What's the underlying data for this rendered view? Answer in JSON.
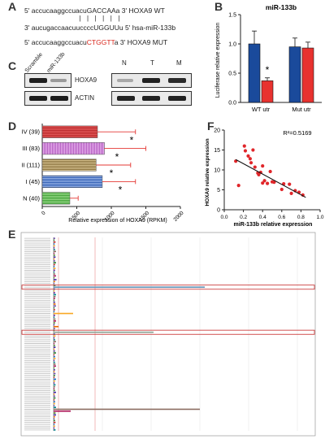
{
  "panels": {
    "A": "A",
    "B": "B",
    "C": "C",
    "D": "D",
    "E": "E",
    "F": "F"
  },
  "panel_a": {
    "line1_prefix": "5' accucaaggccuacuGACCAAa 3' HOXA9 WT",
    "pipes": "| | | | | |",
    "line2": "3' aucugaccaacuuccccUGGUUu 5' hsa-miR-133b",
    "line3_a": "5' accucaaggccuacu",
    "line3_mut": "CTGGTT",
    "line3_b": "a 3' HOXA9 MUT"
  },
  "panel_c": {
    "lane_labels_left": [
      "Scramble",
      "miR-133b"
    ],
    "lane_labels_right": [
      "N",
      "T",
      "M"
    ],
    "row_labels": [
      "HOXA9",
      "ACTIN"
    ]
  },
  "colors": {
    "blue": "#1a4a9b",
    "red": "#e8322f",
    "scatter": "#e0262a",
    "error": "#e53935"
  },
  "chart_data": [
    {
      "id": "B",
      "type": "bar",
      "title": "miR-133b",
      "ylabel": "Luciferase relative expression",
      "categories": [
        "WT utr",
        "Mut utr"
      ],
      "series": [
        {
          "values": [
            1.0,
            0.95
          ],
          "errors": [
            0.22,
            0.15
          ]
        },
        {
          "values": [
            0.37,
            0.93
          ],
          "errors": [
            0.05,
            0.1
          ]
        }
      ],
      "ylim": [
        0,
        1.5
      ],
      "yticks": [
        "0.0",
        "0.5",
        "1.0",
        "1.5"
      ],
      "annotations": [
        "*"
      ]
    },
    {
      "id": "D",
      "type": "bar",
      "orientation": "horizontal",
      "xlabel": "Relative expression of HOXA9  (RPKM)",
      "categories": [
        "IV  (39)",
        "III  (83)",
        "II  (111)",
        "I  (45)",
        "N  (40)"
      ],
      "values": [
        800,
        900,
        780,
        870,
        400
      ],
      "errors": [
        550,
        600,
        500,
        480,
        120
      ],
      "xlim": [
        0,
        2000
      ],
      "xticks": [
        "0",
        "500",
        "1000",
        "1500",
        "2000"
      ],
      "annotations": [
        "*",
        "*",
        "*",
        "*"
      ]
    },
    {
      "id": "F",
      "type": "scatter",
      "xlabel": "miR-133b relative expression",
      "ylabel": "HOXA9 relative expression",
      "annotation": "R²=0.5169",
      "xlim": [
        0,
        1.0
      ],
      "ylim": [
        0,
        20
      ],
      "xticks": [
        "0.0",
        "0.2",
        "0.4",
        "0.6",
        "0.8",
        "1.0"
      ],
      "yticks": [
        "0",
        "5",
        "10",
        "15",
        "20"
      ],
      "points": [
        [
          0.12,
          12.2
        ],
        [
          0.15,
          6.1
        ],
        [
          0.21,
          16.0
        ],
        [
          0.22,
          14.8
        ],
        [
          0.25,
          13.5
        ],
        [
          0.27,
          12.8
        ],
        [
          0.28,
          11.8
        ],
        [
          0.3,
          15.0
        ],
        [
          0.32,
          10.7
        ],
        [
          0.35,
          9.2
        ],
        [
          0.36,
          8.8
        ],
        [
          0.38,
          9.4
        ],
        [
          0.4,
          6.7
        ],
        [
          0.4,
          11.0
        ],
        [
          0.42,
          7.3
        ],
        [
          0.45,
          6.6
        ],
        [
          0.48,
          9.6
        ],
        [
          0.5,
          7.0
        ],
        [
          0.52,
          6.9
        ],
        [
          0.6,
          5.1
        ],
        [
          0.62,
          6.5
        ],
        [
          0.68,
          6.4
        ],
        [
          0.7,
          4.1
        ],
        [
          0.74,
          4.8
        ],
        [
          0.78,
          4.4
        ],
        [
          0.82,
          3.7
        ]
      ],
      "fit": {
        "x": [
          0.12,
          0.85
        ],
        "y": [
          12.6,
          3.1
        ]
      }
    },
    {
      "id": "E",
      "type": "bar",
      "orientation": "horizontal",
      "values": [
        3,
        2,
        4,
        2,
        3,
        2,
        3,
        5,
        2,
        3,
        4,
        2,
        3,
        5,
        3,
        2,
        4,
        3,
        2,
        3,
        5,
        2,
        6,
        3,
        2,
        4,
        310,
        3,
        2,
        3,
        5,
        4,
        3,
        2,
        3,
        4,
        5,
        2,
        3,
        2,
        40,
        3,
        2,
        4,
        5,
        3,
        2,
        10,
        3,
        2,
        205,
        3,
        4,
        2,
        3,
        5,
        2,
        3,
        4,
        2,
        3,
        5,
        2,
        3,
        4,
        2,
        3,
        4,
        5,
        2,
        3,
        2,
        4,
        3,
        2,
        5,
        3,
        2,
        4,
        3,
        2,
        3,
        5,
        2,
        3,
        4,
        2,
        3,
        3,
        2,
        5,
        300,
        35,
        4,
        5,
        3,
        2,
        3,
        4,
        2,
        3,
        2,
        4
      ],
      "highlight_rows": [
        26,
        50
      ]
    }
  ]
}
